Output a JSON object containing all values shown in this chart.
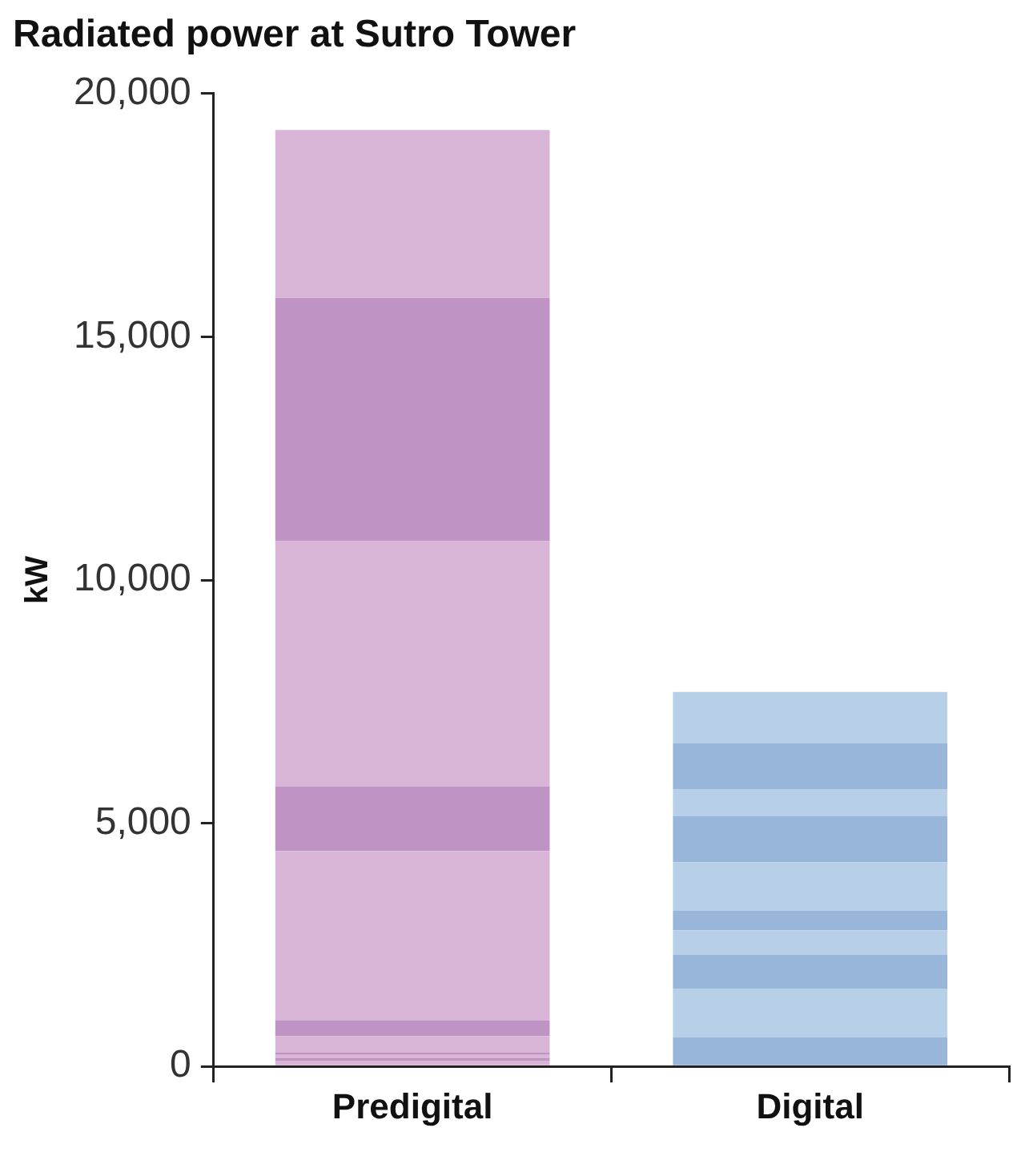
{
  "chart_data": {
    "type": "bar",
    "title": "Radiated power at Sutro Tower",
    "ylabel": "kW",
    "categories": [
      "Predigital",
      "Digital"
    ],
    "stacked": true,
    "grid": false,
    "legend": false,
    "ylim": [
      0,
      20000
    ],
    "yticks": [
      0,
      {
        "value": 5000,
        "label": "5,000"
      },
      {
        "value": 10000,
        "label": "10,000"
      },
      {
        "value": 15000,
        "label": "15,000"
      },
      {
        "value": 20000,
        "label": "20,000"
      }
    ],
    "series": [
      {
        "color": "#d8b4d6",
        "values": [
          120,
          null
        ]
      },
      {
        "color": "#bf94c4",
        "values": [
          50,
          null
        ]
      },
      {
        "color": "#d8b4d6",
        "values": [
          70,
          null
        ]
      },
      {
        "color": "#bf94c4",
        "values": [
          50,
          null
        ]
      },
      {
        "color": "#d8b4d6",
        "values": [
          330,
          null
        ]
      },
      {
        "color": "#bf94c4",
        "values": [
          330,
          null
        ]
      },
      {
        "color": "#d8b4d6",
        "values": [
          3480,
          null
        ]
      },
      {
        "color": "#bf94c4",
        "values": [
          1320,
          null
        ]
      },
      {
        "color": "#d8b4d6",
        "values": [
          5050,
          null
        ]
      },
      {
        "color": "#bf94c4",
        "values": [
          5000,
          null
        ]
      },
      {
        "color": "#d8b4d6",
        "values": [
          3450,
          null
        ]
      },
      {
        "color": "#98b6da",
        "values": [
          null,
          600
        ]
      },
      {
        "color": "#b8cfe8",
        "values": [
          null,
          1000
        ]
      },
      {
        "color": "#98b6da",
        "values": [
          null,
          700
        ]
      },
      {
        "color": "#b8cfe8",
        "values": [
          null,
          500
        ]
      },
      {
        "color": "#98b6da",
        "values": [
          null,
          400
        ]
      },
      {
        "color": "#b8cfe8",
        "values": [
          null,
          1000
        ]
      },
      {
        "color": "#98b6da",
        "values": [
          null,
          950
        ]
      },
      {
        "color": "#b8cfe8",
        "values": [
          null,
          550
        ]
      },
      {
        "color": "#98b6da",
        "values": [
          null,
          950
        ]
      },
      {
        "color": "#b8cfe8",
        "values": [
          null,
          1050
        ]
      }
    ]
  }
}
